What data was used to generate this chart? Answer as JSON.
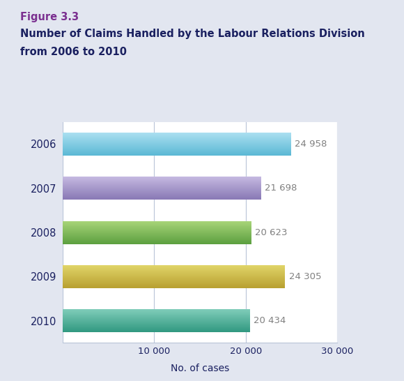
{
  "figure_label": "Figure 3.3",
  "title_line1": "Number of Claims Handled by the Labour Relations Division",
  "title_line2": "from 2006 to 2010",
  "years": [
    "2006",
    "2007",
    "2008",
    "2009",
    "2010"
  ],
  "values": [
    24958,
    21698,
    20623,
    24305,
    20434
  ],
  "value_labels": [
    "24 958",
    "21 698",
    "20 623",
    "24 305",
    "20 434"
  ],
  "bar_colors_top": [
    "#AADFF0",
    "#C4B8E0",
    "#A8D478",
    "#E0D468",
    "#7ECBB8"
  ],
  "bar_colors_bottom": [
    "#5BB8D4",
    "#8878B4",
    "#5CA040",
    "#B8A030",
    "#309880"
  ],
  "xlim": [
    0,
    30000
  ],
  "xticks": [
    0,
    10000,
    20000,
    30000
  ],
  "xtick_labels": [
    "",
    "10 000",
    "20 000",
    "30 000"
  ],
  "xlabel": "No. of cases",
  "background_color": "#E2E6F0",
  "plot_bg_color": "#FFFFFF",
  "figure_label_color": "#7B3090",
  "title_color": "#1A2060",
  "grid_color": "#B8C4D8",
  "value_label_color": "#808080",
  "tick_label_color": "#1A2060",
  "xlabel_color": "#1A2060"
}
